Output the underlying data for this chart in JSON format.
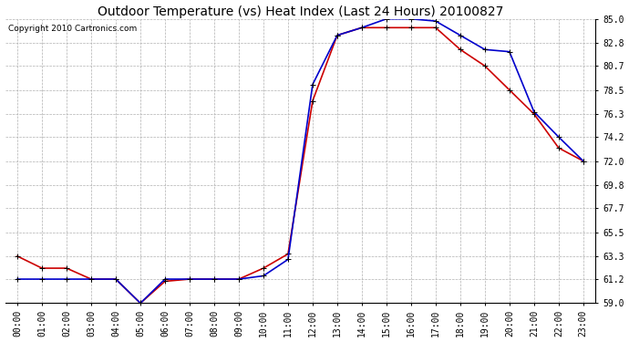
{
  "title": "Outdoor Temperature (vs) Heat Index (Last 24 Hours) 20100827",
  "copyright": "Copyright 2010 Cartronics.com",
  "x_labels": [
    "00:00",
    "01:00",
    "02:00",
    "03:00",
    "04:00",
    "05:00",
    "06:00",
    "07:00",
    "08:00",
    "09:00",
    "10:00",
    "11:00",
    "12:00",
    "13:00",
    "14:00",
    "15:00",
    "16:00",
    "17:00",
    "18:00",
    "19:00",
    "20:00",
    "21:00",
    "22:00",
    "23:00"
  ],
  "outdoor_temp": [
    63.3,
    62.2,
    62.2,
    61.2,
    61.2,
    59.0,
    61.0,
    61.2,
    61.2,
    61.2,
    62.2,
    63.5,
    77.5,
    83.5,
    84.2,
    84.2,
    84.2,
    84.2,
    82.2,
    80.7,
    78.5,
    76.3,
    73.2,
    72.0
  ],
  "heat_index": [
    61.2,
    61.2,
    61.2,
    61.2,
    61.2,
    59.0,
    61.2,
    61.2,
    61.2,
    61.2,
    61.5,
    63.0,
    79.0,
    83.5,
    84.2,
    85.0,
    85.0,
    84.8,
    83.5,
    82.2,
    82.0,
    76.5,
    74.2,
    72.0
  ],
  "ylim": [
    59.0,
    85.0
  ],
  "yticks": [
    59.0,
    61.2,
    63.3,
    65.5,
    67.7,
    69.8,
    72.0,
    74.2,
    76.3,
    78.5,
    80.7,
    82.8,
    85.0
  ],
  "outdoor_color": "#cc0000",
  "heat_index_color": "#0000cc",
  "bg_color": "#ffffff",
  "grid_color": "#b0b0b0",
  "title_fontsize": 10,
  "copyright_fontsize": 6.5,
  "tick_fontsize": 7,
  "fig_width": 6.9,
  "fig_height": 3.75,
  "dpi": 100
}
